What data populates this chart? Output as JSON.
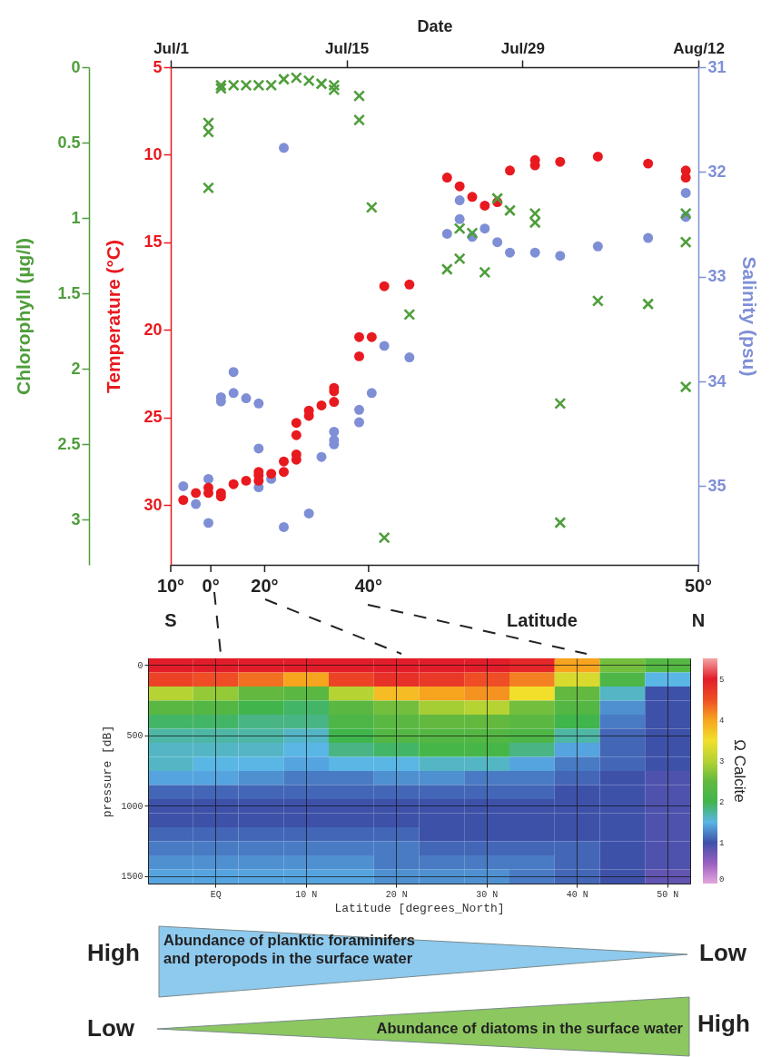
{
  "chart_data": [
    {
      "type": "scatter",
      "xlabel": "Date",
      "ylabel": "Temperature (°C)",
      "y2label": "Salinity (psu)",
      "y3label": "Chlorophyll (µg/l)",
      "annotations": [
        "10°",
        "0°",
        "20°",
        "40°",
        "50°",
        "S",
        "N",
        "Latitude"
      ],
      "xlim": [
        "--07-01",
        "--08-12"
      ],
      "xticks": [
        {
          "value": "--07-01",
          "label": "Jul/1"
        },
        {
          "value": "--07-15",
          "label": "Jul/15"
        },
        {
          "value": "--07-29",
          "label": "Jul/29"
        },
        {
          "value": "--08-12",
          "label": "Aug/12"
        }
      ],
      "ylim": [
        33.4,
        5
      ],
      "yticks": [
        5,
        10,
        15,
        20,
        25,
        30
      ],
      "y2lim": [
        35.75,
        31
      ],
      "y2ticks": [
        31,
        32,
        33,
        34,
        35
      ],
      "y3lim": [
        3.3,
        0
      ],
      "y3ticks": [
        0,
        0.5,
        1,
        1.5,
        2,
        2.5,
        3
      ],
      "series": [
        {
          "color": "#7f8fd6",
          "marker": "circle",
          "axis": "y2",
          "x": [
            "--07-02",
            "--07-03",
            "--07-04",
            "--07-04",
            "--07-05",
            "--07-05",
            "--07-06",
            "--07-06",
            "--07-07",
            "--07-08",
            "--07-08",
            "--07-08",
            "--07-09",
            "--07-10",
            "--07-10",
            "--07-12",
            "--07-13",
            "--07-14",
            "--07-14",
            "--07-14",
            "--07-16",
            "--07-16",
            "--07-17",
            "--07-18",
            "--07-20",
            "--07-23",
            "--07-24",
            "--07-24",
            "--07-25",
            "--07-26",
            "--07-27",
            "--07-28",
            "--07-30",
            "--08-01",
            "--08-04",
            "--08-08",
            "--08-11",
            "--08-11"
          ],
          "values": [
            35.0,
            35.17,
            34.93,
            35.35,
            34.15,
            34.19,
            33.91,
            34.11,
            34.16,
            34.21,
            34.64,
            35.01,
            34.93,
            35.39,
            31.77,
            35.26,
            34.72,
            34.48,
            34.56,
            34.6,
            34.27,
            34.39,
            34.11,
            33.66,
            33.77,
            32.59,
            32.27,
            32.45,
            32.62,
            32.54,
            32.67,
            32.77,
            32.77,
            32.8,
            32.71,
            32.63,
            32.2,
            32.43
          ]
        },
        {
          "color": "#e8191f",
          "marker": "circle",
          "x": [
            "--07-02",
            "--07-03",
            "--07-04",
            "--07-04",
            "--07-05",
            "--07-05",
            "--07-06",
            "--07-07",
            "--07-08",
            "--07-08",
            "--07-08",
            "--07-09",
            "--07-10",
            "--07-10",
            "--07-11",
            "--07-11",
            "--07-11",
            "--07-11",
            "--07-12",
            "--07-12",
            "--07-13",
            "--07-14",
            "--07-14",
            "--07-14",
            "--07-16",
            "--07-17",
            "--07-16",
            "--07-18",
            "--07-20",
            "--07-23",
            "--07-24",
            "--07-25",
            "--07-26",
            "--07-27",
            "--07-28",
            "--07-30",
            "--07-30",
            "--08-01",
            "--08-04",
            "--08-08",
            "--08-11",
            "--08-11"
          ],
          "values": [
            29.7,
            29.3,
            29.0,
            29.3,
            29.3,
            29.5,
            28.8,
            28.6,
            28.1,
            28.3,
            28.6,
            28.2,
            27.5,
            28.1,
            25.3,
            26.0,
            27.1,
            27.4,
            24.6,
            24.9,
            24.3,
            23.3,
            23.5,
            24.1,
            20.4,
            20.4,
            21.5,
            17.5,
            17.4,
            11.3,
            11.8,
            12.4,
            12.9,
            12.7,
            10.9,
            10.3,
            10.6,
            10.4,
            10.1,
            10.5,
            10.9,
            11.3
          ]
        },
        {
          "color": "#4f9e3c",
          "marker": "cross",
          "axis": "y3",
          "x": [
            "--07-04",
            "--07-04",
            "--07-04",
            "--07-05",
            "--07-05",
            "--07-06",
            "--07-07",
            "--07-08",
            "--07-09",
            "--07-10",
            "--07-11",
            "--07-12",
            "--07-13",
            "--07-14",
            "--07-14",
            "--07-16",
            "--07-16",
            "--07-17",
            "--07-18",
            "--07-20",
            "--07-23",
            "--07-24",
            "--07-24",
            "--07-25",
            "--07-26",
            "--07-27",
            "--07-28",
            "--07-30",
            "--07-30",
            "--08-01",
            "--08-01",
            "--08-04",
            "--08-08",
            "--08-11",
            "--08-11",
            "--08-11"
          ],
          "values": [
            0.37,
            0.43,
            0.8,
            0.12,
            0.14,
            0.12,
            0.12,
            0.12,
            0.12,
            0.08,
            0.07,
            0.09,
            0.11,
            0.12,
            0.15,
            0.19,
            0.35,
            0.93,
            3.12,
            1.64,
            1.34,
            1.07,
            1.27,
            1.1,
            1.36,
            0.87,
            0.95,
            0.97,
            1.03,
            2.23,
            3.02,
            1.55,
            1.57,
            0.97,
            1.16,
            2.12
          ]
        }
      ]
    },
    {
      "type": "heatmap",
      "xlabel": "Latitude [degrees_North]",
      "ylabel": "pressure [dB]",
      "clabel": "Ω Calcite",
      "grid": true,
      "categories": [
        null,
        "EQ",
        null,
        "10 N",
        null,
        "20 N",
        null,
        "30 N",
        null,
        "40 N",
        null,
        "50 N"
      ],
      "y_categories": [
        "0",
        null,
        null,
        null,
        null,
        "500",
        null,
        null,
        null,
        null,
        "1000",
        null,
        null,
        null,
        null,
        "1500"
      ],
      "clim": [
        0,
        5.5
      ],
      "cticks": [
        0,
        1,
        2,
        3,
        4,
        5
      ],
      "cells": [
        [
          5.0,
          5.0,
          5.0,
          5.0,
          5.0,
          5.0,
          5.0,
          5.0,
          4.9,
          4.0,
          2.6,
          2.3
        ],
        [
          4.6,
          4.5,
          4.3,
          4.0,
          4.6,
          4.8,
          4.7,
          4.5,
          4.2,
          3.3,
          2.2,
          1.5
        ],
        [
          3.0,
          2.8,
          2.5,
          2.4,
          3.0,
          3.8,
          4.0,
          4.1,
          3.5,
          2.5,
          1.6,
          1.0
        ],
        [
          2.4,
          2.3,
          2.0,
          1.9,
          2.4,
          2.6,
          2.9,
          3.0,
          2.6,
          2.3,
          1.3,
          1.0
        ],
        [
          1.9,
          1.9,
          1.8,
          1.8,
          2.2,
          2.4,
          2.5,
          2.5,
          2.4,
          2.0,
          1.2,
          1.0
        ],
        [
          1.7,
          1.7,
          1.7,
          1.6,
          2.0,
          2.3,
          2.3,
          2.3,
          2.2,
          1.7,
          1.1,
          1.0
        ],
        [
          1.6,
          1.6,
          1.6,
          1.5,
          1.8,
          1.9,
          2.1,
          2.1,
          1.8,
          1.4,
          1.1,
          1.0
        ],
        [
          1.6,
          1.5,
          1.5,
          1.4,
          1.5,
          1.5,
          1.6,
          1.6,
          1.4,
          1.2,
          1.1,
          1.0
        ],
        [
          1.4,
          1.4,
          1.3,
          1.2,
          1.2,
          1.3,
          1.3,
          1.2,
          1.2,
          1.1,
          1.0,
          0.9
        ],
        [
          1.1,
          1.1,
          1.1,
          1.1,
          1.1,
          1.1,
          1.1,
          1.1,
          1.1,
          1.0,
          1.0,
          0.9
        ],
        [
          1.0,
          1.0,
          1.0,
          1.0,
          1.0,
          1.0,
          1.0,
          1.0,
          1.0,
          1.0,
          1.0,
          0.9
        ],
        [
          1.0,
          1.0,
          1.0,
          1.0,
          1.0,
          1.0,
          1.0,
          1.0,
          1.0,
          1.0,
          1.0,
          0.9
        ],
        [
          1.1,
          1.1,
          1.1,
          1.1,
          1.1,
          1.1,
          1.0,
          1.0,
          1.0,
          1.0,
          1.0,
          0.9
        ],
        [
          1.2,
          1.2,
          1.2,
          1.2,
          1.2,
          1.2,
          1.1,
          1.1,
          1.1,
          1.1,
          1.0,
          0.9
        ],
        [
          1.3,
          1.3,
          1.3,
          1.3,
          1.3,
          1.2,
          1.2,
          1.2,
          1.2,
          1.1,
          1.0,
          0.9
        ],
        [
          1.4,
          1.4,
          1.4,
          1.4,
          1.4,
          1.3,
          1.3,
          1.3,
          1.2,
          1.1,
          1.0,
          0.8
        ]
      ]
    },
    {
      "type": "other",
      "annotations": [
        "High",
        "Abundance of planktic foraminifers\nand pteropods in the surface water",
        "Low",
        "Low",
        "Abundance of diatoms in the surface water",
        "High"
      ]
    }
  ]
}
